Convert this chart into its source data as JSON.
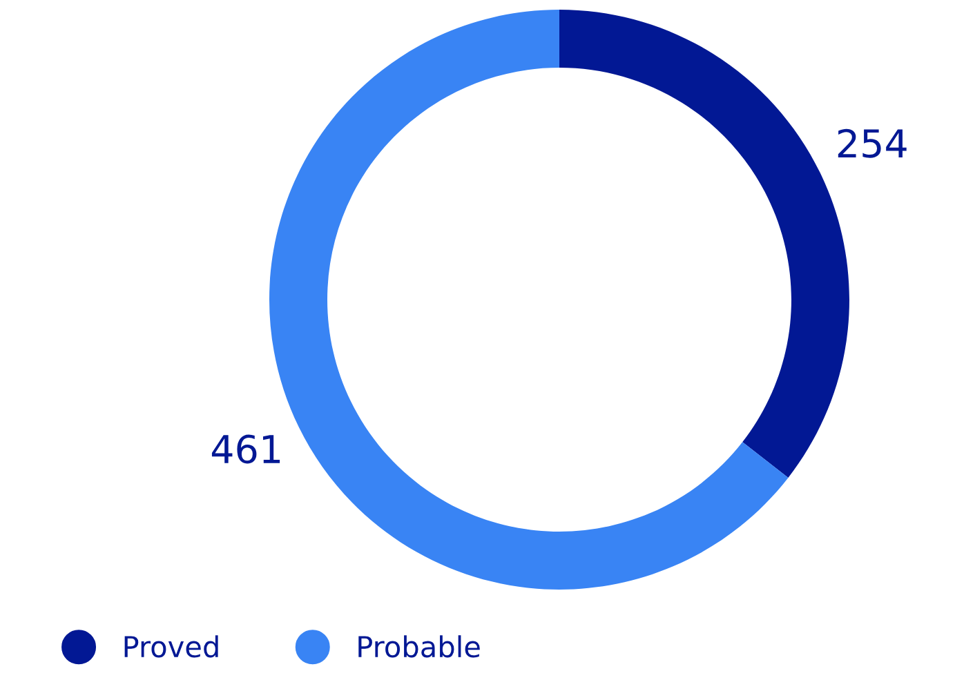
{
  "chart_data": {
    "type": "donut",
    "categories": [
      "Proved",
      "Probable"
    ],
    "values": [
      254,
      461
    ],
    "colors": [
      "#021894",
      "#3984f4"
    ],
    "data_labels": true,
    "legend": "bottom left"
  }
}
